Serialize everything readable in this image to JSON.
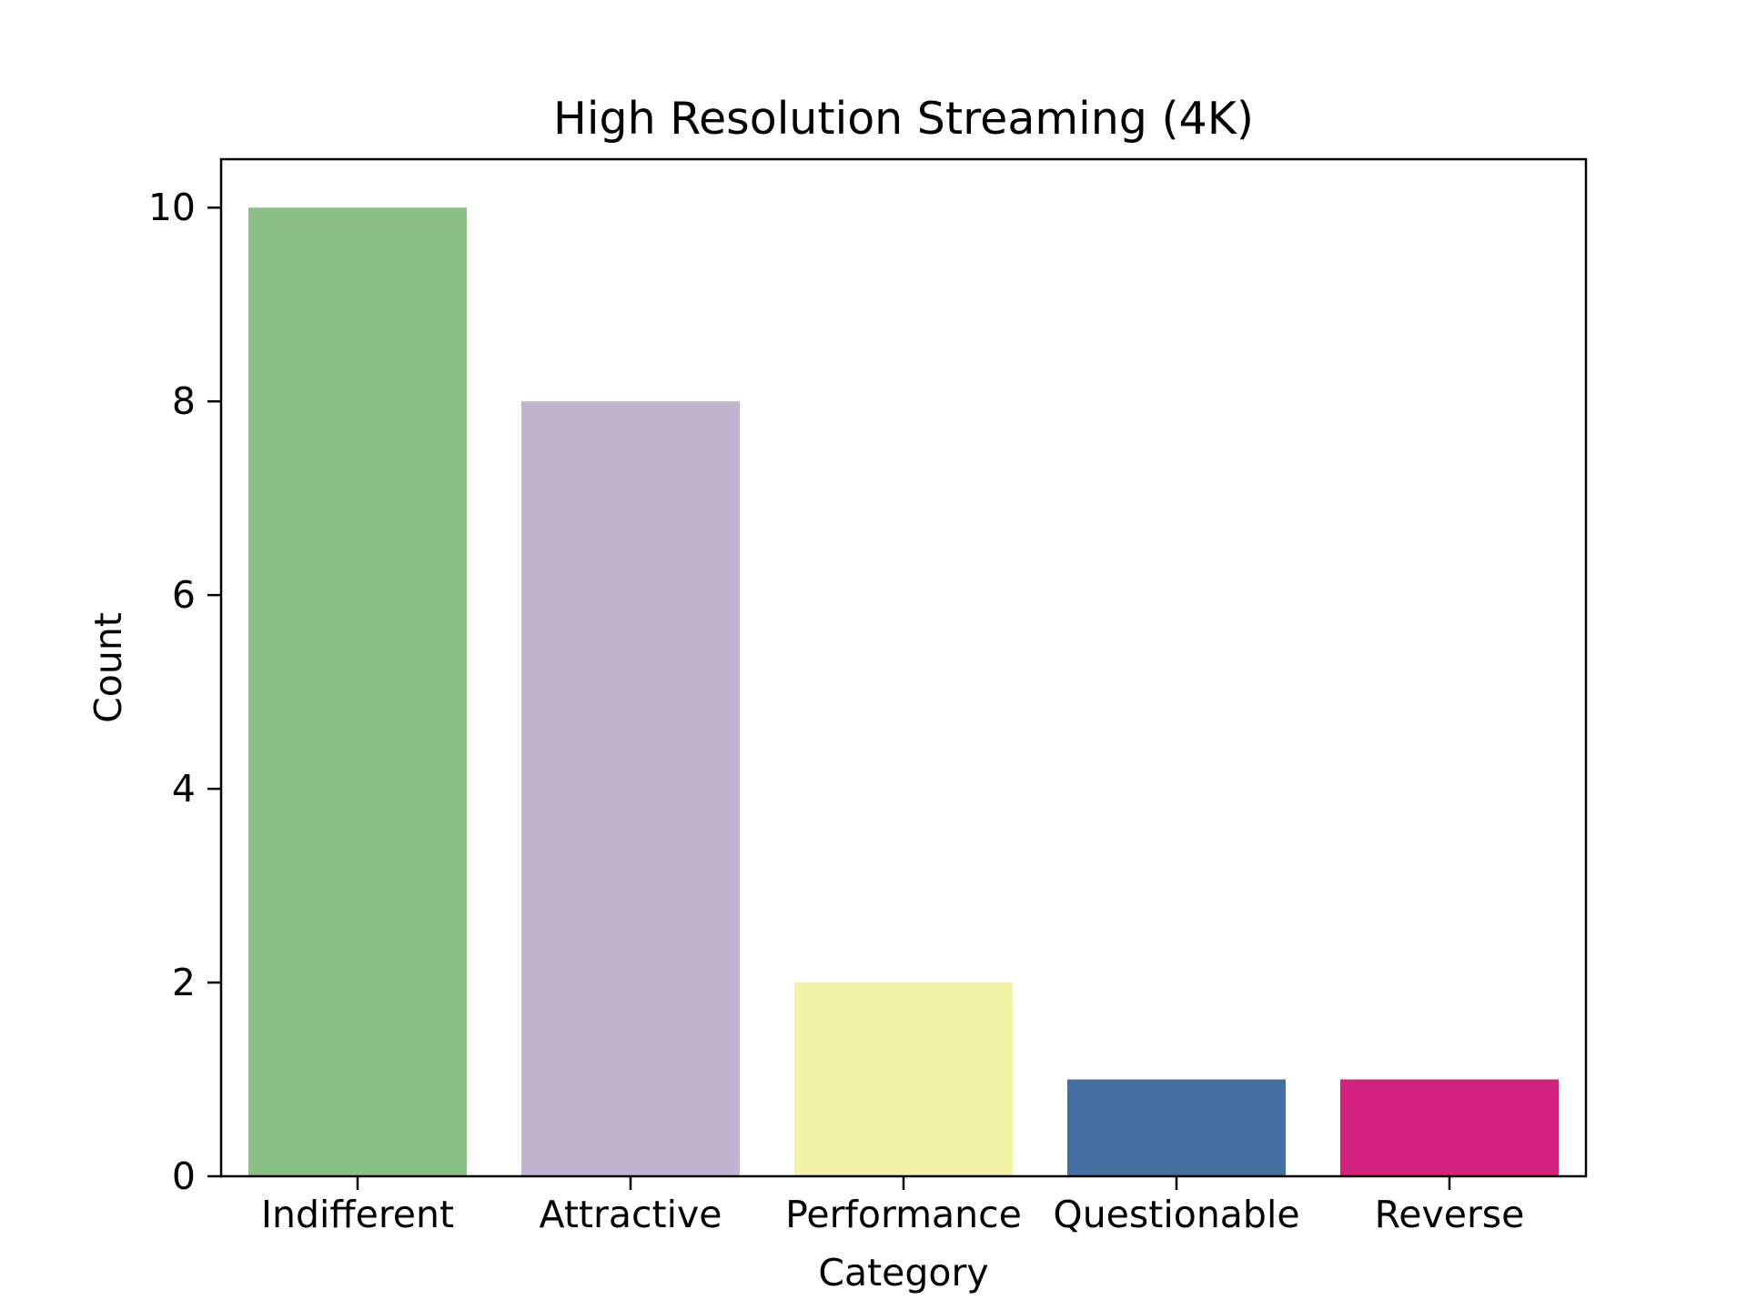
{
  "chart_data": {
    "type": "bar",
    "title": "High Resolution Streaming (4K)",
    "xlabel": "Category",
    "ylabel": "Count",
    "categories": [
      "Indifferent",
      "Attractive",
      "Performance",
      "Questionable",
      "Reverse"
    ],
    "values": [
      10,
      8,
      2,
      1,
      1
    ],
    "colors": [
      "#8abf85",
      "#c1b2d0",
      "#f2f2a6",
      "#466fa1",
      "#d3217d"
    ],
    "ylim": [
      0,
      10.5
    ],
    "yticks": [
      0,
      2,
      4,
      6,
      8,
      10
    ],
    "grid": false,
    "legend": "none"
  }
}
